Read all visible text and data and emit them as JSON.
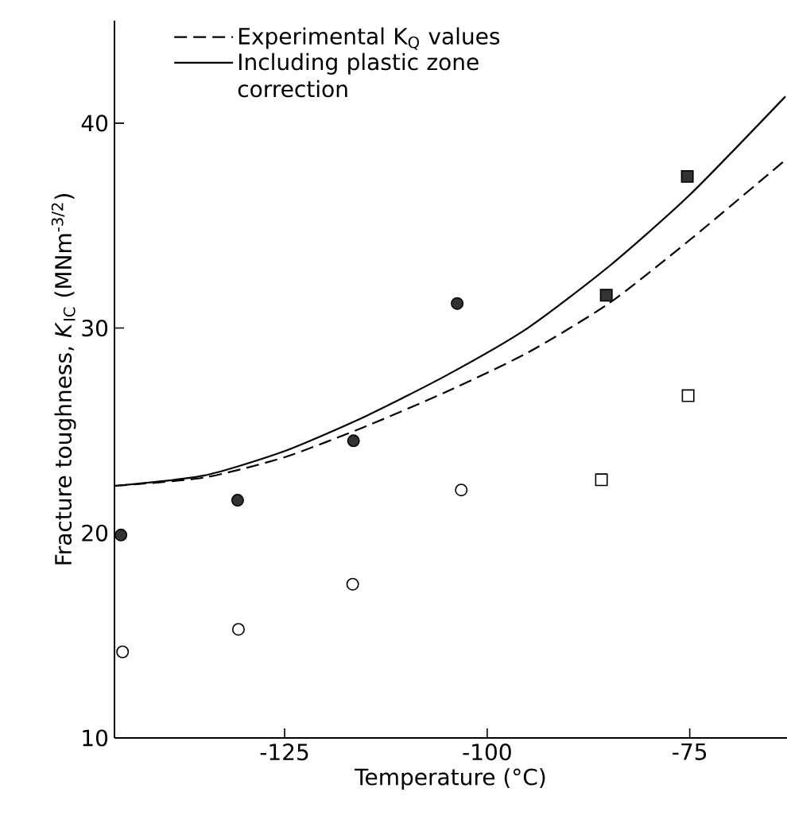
{
  "chart_data": {
    "type": "scatter",
    "xlabel": "Temperature (°C)",
    "ylabel": "Fracture toughness, *K*$_{IC}$ (MNm$^{-3/2}$)",
    "xlim": [
      -146,
      -63
    ],
    "ylim": [
      10,
      45
    ],
    "xticks": [
      -125,
      -100,
      -75
    ],
    "yticks": [
      10,
      20,
      30,
      40
    ],
    "grid": false,
    "legend": "top",
    "series": [
      {
        "name": "Experimental K$_{Q}$ values",
        "type": "line",
        "line_style": "dashed",
        "marker": "none",
        "color": "#000000",
        "x": [
          -146,
          -135,
          -125,
          -115,
          -105,
          -95,
          -85,
          -75,
          -63.2
        ],
        "values": [
          22.3,
          22.7,
          23.7,
          25.2,
          26.9,
          28.8,
          31.2,
          34.3,
          38.2
        ]
      },
      {
        "name": "Including plastic zone correction",
        "type": "line",
        "line_style": "solid",
        "marker": "none",
        "color": "#000000",
        "x": [
          -146,
          -135,
          -125,
          -115,
          -105,
          -95,
          -85,
          -75,
          -63.2
        ],
        "values": [
          22.3,
          22.8,
          24.0,
          25.7,
          27.7,
          30.0,
          33.0,
          36.5,
          41.3
        ]
      },
      {
        "marker": "circle",
        "color": "#333333",
        "x": [
          -145.2,
          -130.8,
          -116.5,
          -103.7
        ],
        "values": [
          19.9,
          21.6,
          24.5,
          31.2
        ]
      },
      {
        "marker": "square",
        "color": "#333333",
        "x": [
          -85.3,
          -75.3
        ],
        "values": [
          31.6,
          37.4
        ]
      },
      {
        "marker": "circle",
        "color": "#ffffff",
        "x": [
          -145.0,
          -130.7,
          -116.6,
          -103.2
        ],
        "values": [
          14.2,
          15.3,
          17.5,
          22.1
        ]
      },
      {
        "marker": "square",
        "color": "#ffffff",
        "x": [
          -85.9,
          -75.2
        ],
        "values": [
          22.6,
          26.7
        ]
      }
    ]
  }
}
